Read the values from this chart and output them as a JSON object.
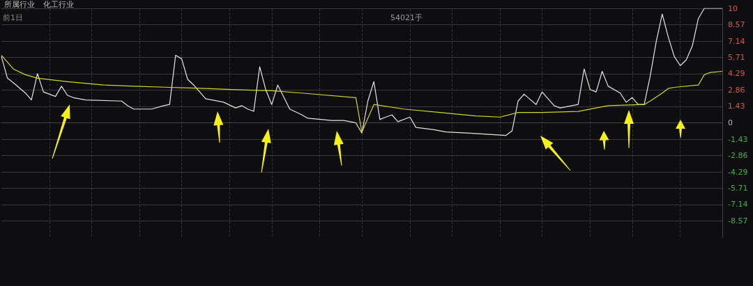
{
  "chart_data": {
    "type": "line",
    "annotations": [
      "所属行业",
      "化工行业",
      "前1日",
      "54021手"
    ],
    "categories": [
      null,
      null,
      null,
      null,
      null,
      null,
      null,
      null,
      null,
      null,
      null,
      null,
      null,
      null,
      null,
      null,
      null,
      null,
      null,
      null,
      null,
      null,
      null,
      null,
      null,
      null,
      null,
      null,
      null,
      null,
      null,
      null,
      null,
      null,
      null,
      null,
      null,
      null,
      null,
      null,
      null,
      null,
      null,
      null,
      null,
      null,
      null,
      null,
      null,
      null,
      null,
      null,
      null,
      null,
      null,
      null,
      null,
      null,
      null,
      null,
      null,
      null,
      null,
      null,
      null,
      null,
      null,
      null,
      null,
      null,
      null,
      null,
      null,
      null,
      null,
      null,
      null,
      null,
      null,
      null,
      null,
      null,
      null,
      null,
      null,
      null,
      null,
      null,
      null,
      null,
      null,
      null,
      null,
      null,
      null,
      null,
      null,
      null,
      null,
      null,
      null,
      null,
      null,
      null,
      null,
      null,
      null,
      null,
      null,
      null,
      null,
      null,
      null,
      null,
      null,
      null,
      null,
      null,
      null,
      null,
      null
    ],
    "ylim": [
      -10,
      10
    ],
    "yticks": [
      10,
      8.57,
      7.14,
      5.71,
      4.29,
      2.86,
      1.43,
      0,
      -1.43,
      -2.86,
      -4.29,
      -5.71,
      -7.14,
      -8.57
    ],
    "tick_labels": "y",
    "grid": true,
    "series": [
      {
        "color": "#e6e6e6",
        "values": [
          5.8,
          3.9,
          3.5,
          null,
          2.6,
          2.0,
          4.3,
          2.7,
          null,
          2.3,
          3.2,
          2.4,
          2.2,
          null,
          2.0,
          null,
          null,
          null,
          null,
          null,
          1.9,
          1.5,
          1.2,
          null,
          null,
          1.2,
          null,
          1.5,
          1.6,
          5.9,
          5.6,
          3.8,
          3.3,
          null,
          2.1,
          null,
          null,
          1.8,
          null,
          1.3,
          1.5,
          1.2,
          1.0,
          4.9,
          2.9,
          1.6,
          3.3,
          null,
          1.2,
          null,
          0.7,
          0.4,
          null,
          null,
          null,
          0.2,
          null,
          0.2,
          null,
          0.0,
          -0.9,
          1.9,
          3.6,
          0.3,
          0.5,
          0.7,
          0.1,
          null,
          0.5,
          -0.4,
          null,
          null,
          -0.6,
          null,
          -0.8,
          null,
          null,
          null,
          -0.9,
          null,
          null,
          null,
          null,
          null,
          -1.1,
          -0.7,
          1.9,
          2.5,
          null,
          1.6,
          2.7,
          null,
          1.5,
          1.3,
          null,
          null,
          1.6,
          4.7,
          2.9,
          2.7,
          4.5,
          3.2,
          null,
          2.6,
          1.8,
          2.2,
          1.6,
          1.6,
          4.1,
          7.1,
          9.5,
          7.5,
          5.8,
          5.0,
          5.5,
          6.7,
          9.1,
          10.0,
          10.0,
          10.0,
          10.0
        ]
      },
      {
        "color": "#d4d42a",
        "values": [
          5.9,
          null,
          4.7,
          null,
          4.2,
          null,
          3.9,
          null,
          null,
          null,
          null,
          3.6,
          null,
          null,
          null,
          null,
          null,
          3.3,
          null,
          null,
          null,
          null,
          3.2,
          null,
          null,
          null,
          null,
          null,
          3.1,
          null,
          null,
          null,
          null,
          null,
          3.0,
          null,
          null,
          null,
          null,
          2.9,
          null,
          null,
          null,
          null,
          null,
          2.8,
          null,
          null,
          null,
          null,
          2.6,
          null,
          null,
          null,
          null,
          null,
          null,
          null,
          null,
          2.2,
          -0.8,
          0.4,
          1.6,
          null,
          null,
          null,
          null,
          1.2,
          null,
          null,
          null,
          null,
          null,
          0.9,
          null,
          null,
          null,
          null,
          null,
          0.6,
          null,
          null,
          null,
          0.5,
          null,
          null,
          0.9,
          null,
          null,
          null,
          0.9,
          null,
          null,
          null,
          null,
          null,
          1.0,
          null,
          null,
          1.3,
          null,
          1.5,
          null,
          null,
          null,
          null,
          null,
          1.6,
          1.9,
          null,
          2.6,
          3.0,
          3.1,
          null,
          null,
          null,
          3.3,
          4.2,
          4.4,
          null,
          4.5
        ]
      }
    ]
  }
}
